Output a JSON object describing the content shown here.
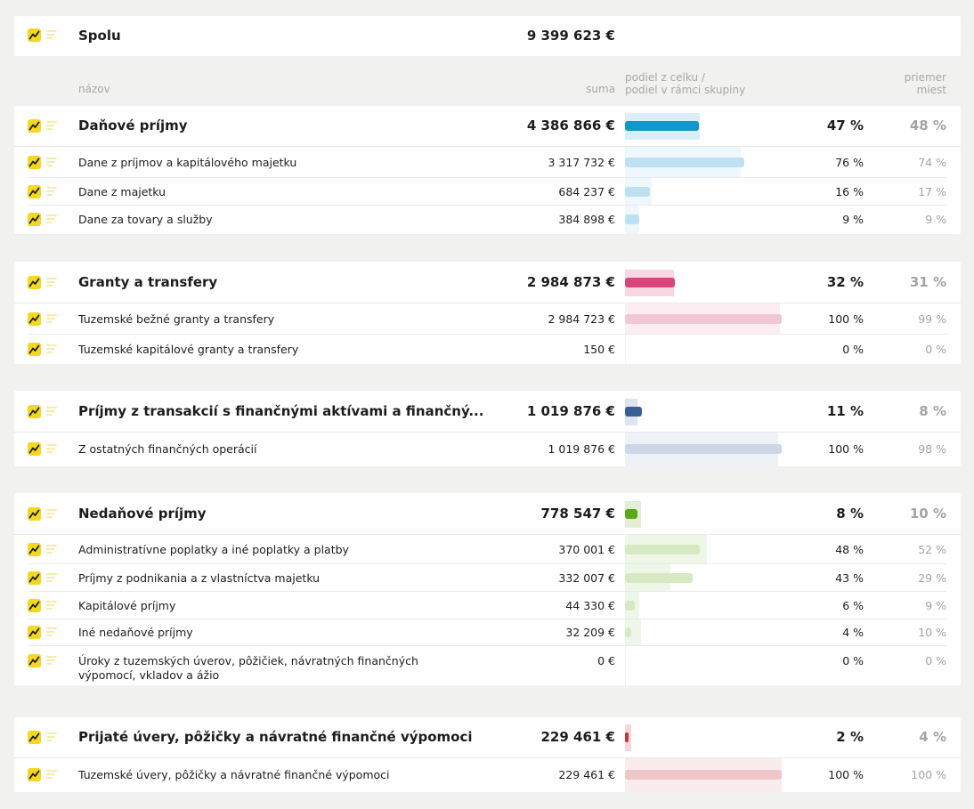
{
  "total": {
    "label": "Spolu",
    "amount": "9 399 623 €"
  },
  "columns": {
    "name": "názov",
    "sum": "suma",
    "share_line1": "podiel z celku /",
    "share_line2": "podiel v rámci skupiny",
    "avg_line1": "priemer",
    "avg_line2": "miest"
  },
  "colors": {
    "dane": {
      "main": "#1197c9",
      "bg": "#d9eef8",
      "sub": "#bde1f3",
      "subbg": "#eef7fc"
    },
    "granty": {
      "main": "#d9457a",
      "bg": "#f7d7e3",
      "sub": "#f3c6d5",
      "subbg": "#fcedf2"
    },
    "fin": {
      "main": "#3a5f92",
      "bg": "#dde5ef",
      "sub": "#cdd8e6",
      "subbg": "#eef2f7"
    },
    "nedan": {
      "main": "#5aa81a",
      "bg": "#e1f0d4",
      "sub": "#d5e9c3",
      "subbg": "#eef6e8"
    },
    "uvery": {
      "main": "#c9323f",
      "bg": "#f5d6d9",
      "sub": "#efc7cb",
      "subbg": "#faeced"
    },
    "icon_accent": "#f4d820"
  },
  "groups": [
    {
      "key": "dane",
      "name": "Daňové príjmy",
      "amount": "4 386 866 €",
      "pct": "47 %",
      "avg": "48 %",
      "share": 0.47,
      "avg_share": 0.48,
      "items": [
        {
          "name": "Dane z príjmov a kapitálového majetku",
          "amount": "3 317 732 €",
          "pct": "76 %",
          "avg": "74 %",
          "share": 0.76,
          "avg_share": 0.74
        },
        {
          "name": "Dane z majetku",
          "amount": "684 237 €",
          "pct": "16 %",
          "avg": "17 %",
          "share": 0.16,
          "avg_share": 0.17
        },
        {
          "name": "Dane za tovary a služby",
          "amount": "384 898 €",
          "pct": "9 %",
          "avg": "9 %",
          "share": 0.09,
          "avg_share": 0.09
        }
      ]
    },
    {
      "key": "granty",
      "name": "Granty a transfery",
      "amount": "2 984 873 €",
      "pct": "32 %",
      "avg": "31 %",
      "share": 0.32,
      "avg_share": 0.31,
      "items": [
        {
          "name": "Tuzemské bežné granty a transfery",
          "amount": "2 984 723 €",
          "pct": "100 %",
          "avg": "99 %",
          "share": 1.0,
          "avg_share": 0.99
        },
        {
          "name": "Tuzemské kapitálové granty a transfery",
          "amount": "150 €",
          "pct": "0 %",
          "avg": "0 %",
          "share": 0.0,
          "avg_share": 0.0
        }
      ]
    },
    {
      "key": "fin",
      "name": "Príjmy z transakcií s finančnými aktívami a finančný...",
      "amount": "1 019 876 €",
      "pct": "11 %",
      "avg": "8 %",
      "share": 0.11,
      "avg_share": 0.08,
      "items": [
        {
          "name": "Z ostatných finančných operácií",
          "amount": "1 019 876 €",
          "pct": "100 %",
          "avg": "98 %",
          "share": 1.0,
          "avg_share": 0.98
        }
      ]
    },
    {
      "key": "nedan",
      "name": "Nedaňové príjmy",
      "amount": "778 547 €",
      "pct": "8 %",
      "avg": "10 %",
      "share": 0.08,
      "avg_share": 0.1,
      "items": [
        {
          "name": "Administratívne poplatky a iné poplatky a platby",
          "amount": "370 001 €",
          "pct": "48 %",
          "avg": "52 %",
          "share": 0.48,
          "avg_share": 0.52
        },
        {
          "name": "Príjmy z podnikania a z vlastníctva majetku",
          "amount": "332 007 €",
          "pct": "43 %",
          "avg": "29 %",
          "share": 0.43,
          "avg_share": 0.29
        },
        {
          "name": "Kapitálové príjmy",
          "amount": "44 330 €",
          "pct": "6 %",
          "avg": "9 %",
          "share": 0.06,
          "avg_share": 0.09
        },
        {
          "name": "Iné nedaňové príjmy",
          "amount": "32 209 €",
          "pct": "4 %",
          "avg": "10 %",
          "share": 0.04,
          "avg_share": 0.1
        },
        {
          "name": "Úroky z tuzemských úverov, pôžičiek, návratných finančných výpomocí, vkladov a ážio",
          "name_line1": "Úroky z tuzemských úverov, pôžičiek, návratných finančných",
          "name_line2": "výpomocí, vkladov a ážio",
          "amount": "0 €",
          "pct": "0 %",
          "avg": "0 %",
          "share": 0.0,
          "avg_share": 0.0
        }
      ]
    },
    {
      "key": "uvery",
      "name": "Prijaté úvery, pôžičky a návratné finančné výpomoci",
      "amount": "229 461 €",
      "pct": "2 %",
      "avg": "4 %",
      "share": 0.02,
      "avg_share": 0.04,
      "items": [
        {
          "name": "Tuzemské úvery, pôžičky a návratné finančné výpomoci",
          "amount": "229 461 €",
          "pct": "100 %",
          "avg": "100 %",
          "share": 1.0,
          "avg_share": 1.0
        }
      ]
    }
  ]
}
